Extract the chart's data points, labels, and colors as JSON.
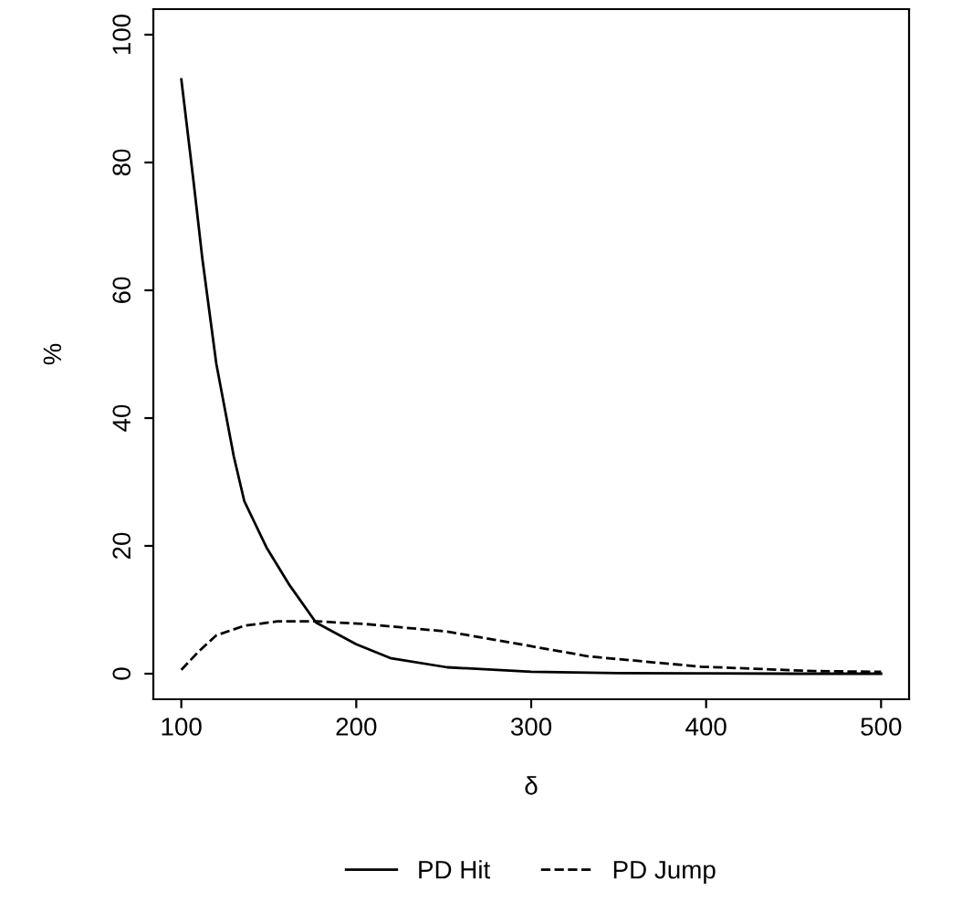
{
  "chart_data": {
    "type": "line",
    "xlabel": "δ",
    "ylabel": "%",
    "xlim": [
      84,
      516
    ],
    "ylim": [
      -4,
      104
    ],
    "xticks": [
      100,
      200,
      300,
      400,
      500
    ],
    "yticks": [
      0,
      20,
      40,
      60,
      80,
      100
    ],
    "grid": false,
    "legend": "bottom",
    "marker": "none",
    "series": [
      {
        "name": "PD Hit",
        "color": "#000000",
        "line_style": "solid",
        "x": [
          100,
          107,
          112,
          120,
          130,
          136,
          149,
          162,
          177,
          200,
          220,
          252,
          300,
          350,
          400,
          450,
          500
        ],
        "values": [
          93,
          77,
          65,
          48.5,
          34,
          27,
          19.6,
          13.8,
          8,
          4.6,
          2.4,
          1,
          0.3,
          0.1,
          0.05,
          0,
          0
        ]
      },
      {
        "name": "PD Jump",
        "color": "#000000",
        "line_style": "dashed",
        "x": [
          100,
          110,
          120,
          136,
          155,
          177,
          204,
          252,
          300,
          333,
          397,
          462,
          500
        ],
        "values": [
          0.6,
          3.5,
          6,
          7.5,
          8.2,
          8.2,
          7.8,
          6.6,
          4.3,
          2.7,
          1.1,
          0.4,
          0.3
        ]
      }
    ]
  }
}
